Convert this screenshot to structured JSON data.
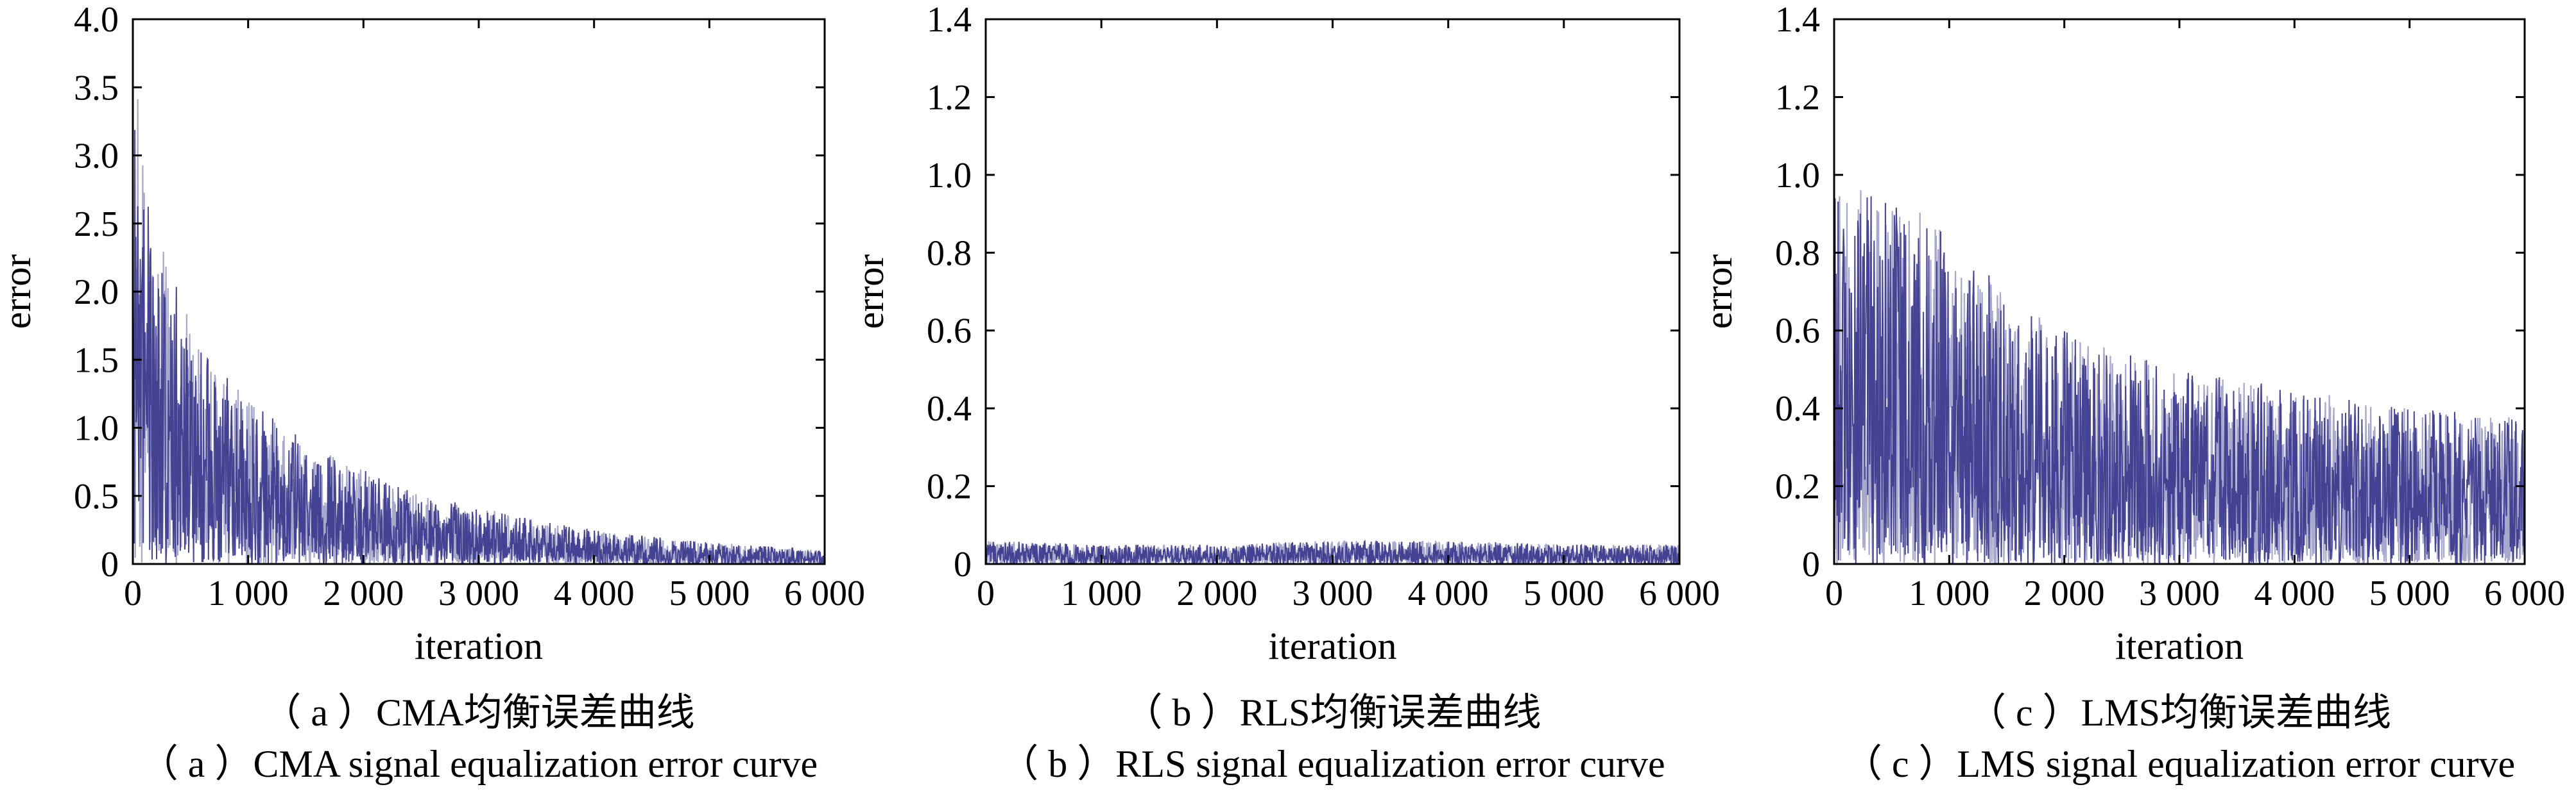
{
  "chart_data": [
    {
      "type": "line",
      "caption_cn": "（ a ）CMA均衡误差曲线",
      "caption_en": "（ a ）CMA signal equalization error curve",
      "xlabel": "iteration",
      "ylabel": "error",
      "xlim": [
        0,
        6000
      ],
      "ylim": [
        0,
        4.0
      ],
      "xticks": [
        0,
        1000,
        2000,
        3000,
        4000,
        5000,
        6000
      ],
      "xtick_labels": [
        "0",
        "1 000",
        "2 000",
        "3 000",
        "4 000",
        "5 000",
        "6 000"
      ],
      "yticks": [
        0,
        0.5,
        1.0,
        1.5,
        2.0,
        2.5,
        3.0,
        3.5,
        4.0
      ],
      "ytick_labels": [
        "0",
        "0.5",
        "1.0",
        "1.5",
        "2.0",
        "2.5",
        "3.0",
        "3.5",
        "4.0"
      ],
      "grid": false,
      "series_color": "#3d3b8e",
      "envelope": {
        "x": [
          0,
          50,
          100,
          200,
          300,
          500,
          700,
          1000,
          1500,
          2000,
          2500,
          3000,
          3500,
          4000,
          4500,
          5000,
          5500,
          6000
        ],
        "peak": [
          3.7,
          3.4,
          3.0,
          2.6,
          2.2,
          1.8,
          1.5,
          1.2,
          0.9,
          0.7,
          0.5,
          0.42,
          0.32,
          0.25,
          0.2,
          0.16,
          0.13,
          0.1
        ]
      }
    },
    {
      "type": "line",
      "caption_cn": "（ b ）RLS均衡误差曲线",
      "caption_en": "（ b ）RLS signal equalization error curve",
      "xlabel": "iteration",
      "ylabel": "error",
      "xlim": [
        0,
        6000
      ],
      "ylim": [
        0,
        1.4
      ],
      "xticks": [
        0,
        1000,
        2000,
        3000,
        4000,
        5000,
        6000
      ],
      "xtick_labels": [
        "0",
        "1 000",
        "2 000",
        "3 000",
        "4 000",
        "5 000",
        "6 000"
      ],
      "yticks": [
        0,
        0.2,
        0.4,
        0.6,
        0.8,
        1.0,
        1.2,
        1.4
      ],
      "ytick_labels": [
        "0",
        "0.2",
        "0.4",
        "0.6",
        "0.8",
        "1.0",
        "1.2",
        "1.4"
      ],
      "grid": false,
      "series_color": "#3d3b8e",
      "envelope": {
        "x": [
          0,
          1000,
          2000,
          3000,
          4000,
          5000,
          6000
        ],
        "peak": [
          0.06,
          0.05,
          0.05,
          0.06,
          0.06,
          0.05,
          0.05
        ]
      }
    },
    {
      "type": "line",
      "caption_cn": "（ c ）LMS均衡误差曲线",
      "caption_en": "（ c ）LMS signal equalization error curve",
      "xlabel": "iteration",
      "ylabel": "error",
      "xlim": [
        0,
        6000
      ],
      "ylim": [
        0,
        1.4
      ],
      "xticks": [
        0,
        1000,
        2000,
        3000,
        4000,
        5000,
        6000
      ],
      "xtick_labels": [
        "0",
        "1 000",
        "2 000",
        "3 000",
        "4 000",
        "5 000",
        "6 000"
      ],
      "yticks": [
        0,
        0.2,
        0.4,
        0.6,
        0.8,
        1.0,
        1.2,
        1.4
      ],
      "ytick_labels": [
        "0",
        "0.2",
        "0.4",
        "0.6",
        "0.8",
        "1.0",
        "1.2",
        "1.4"
      ],
      "grid": false,
      "series_color": "#3d3b8e",
      "envelope": {
        "x": [
          0,
          300,
          800,
          1500,
          2000,
          3000,
          4000,
          5000,
          6000
        ],
        "peak": [
          1.0,
          0.95,
          0.9,
          0.7,
          0.6,
          0.5,
          0.45,
          0.4,
          0.38
        ]
      }
    }
  ]
}
